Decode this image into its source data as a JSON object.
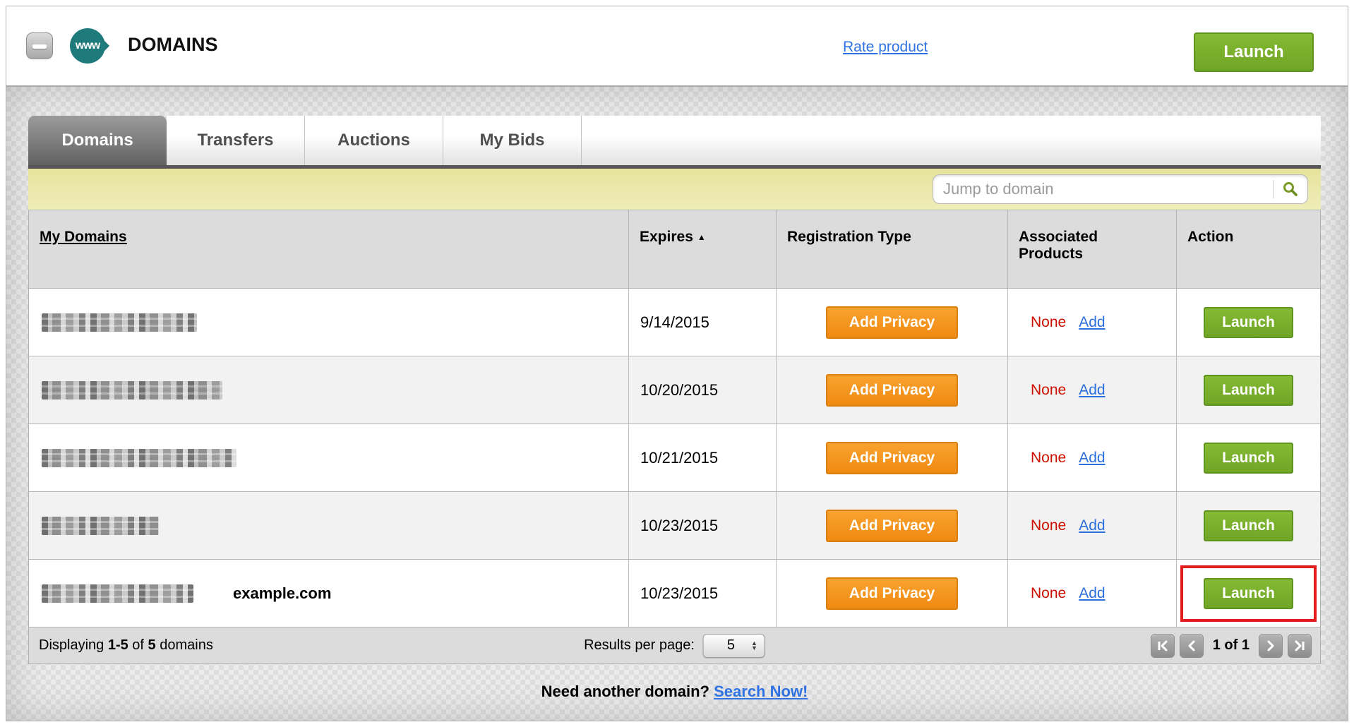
{
  "header": {
    "logo_text": "www",
    "title": "DOMAINS",
    "rate_product_label": "Rate product",
    "launch_label": "Launch"
  },
  "tabs": [
    {
      "label": "Domains",
      "active": true
    },
    {
      "label": "Transfers",
      "active": false
    },
    {
      "label": "Auctions",
      "active": false
    },
    {
      "label": "My Bids",
      "active": false
    }
  ],
  "search": {
    "placeholder": "Jump to domain"
  },
  "table": {
    "columns": {
      "domains": "My Domains",
      "expires": "Expires",
      "expires_sort": "▲",
      "registration": "Registration Type",
      "associated": "Associated Products",
      "action": "Action"
    },
    "rows": [
      {
        "redacted": true,
        "redact_width": 220,
        "expires": "9/14/2015",
        "privacy_label": "Add Privacy",
        "associated_value": "None",
        "add_label": "Add",
        "action_label": "Launch",
        "highlighted": false,
        "annotation": ""
      },
      {
        "redacted": true,
        "redact_width": 256,
        "expires": "10/20/2015",
        "privacy_label": "Add Privacy",
        "associated_value": "None",
        "add_label": "Add",
        "action_label": "Launch",
        "highlighted": false,
        "annotation": ""
      },
      {
        "redacted": true,
        "redact_width": 276,
        "expires": "10/21/2015",
        "privacy_label": "Add Privacy",
        "associated_value": "None",
        "add_label": "Add",
        "action_label": "Launch",
        "highlighted": false,
        "annotation": ""
      },
      {
        "redacted": true,
        "redact_width": 166,
        "expires": "10/23/2015",
        "privacy_label": "Add Privacy",
        "associated_value": "None",
        "add_label": "Add",
        "action_label": "Launch",
        "highlighted": false,
        "annotation": ""
      },
      {
        "redacted": true,
        "redact_width": 215,
        "expires": "10/23/2015",
        "privacy_label": "Add Privacy",
        "associated_value": "None",
        "add_label": "Add",
        "action_label": "Launch",
        "highlighted": true,
        "annotation": "example.com"
      }
    ]
  },
  "footer": {
    "displaying_prefix": "Displaying",
    "range": "1-5",
    "of_word": "of",
    "total": "5",
    "suffix": "domains",
    "results_per_page_label": "Results per page:",
    "results_per_page_value": "5",
    "page_status": "1 of 1"
  },
  "bottom": {
    "prompt": "Need another domain?",
    "link_label": "Search Now!"
  },
  "colors": {
    "accent_green": "#7ab32b",
    "accent_orange": "#f5941e",
    "link_blue": "#2f72e4",
    "status_red": "#cc1100",
    "bar_yellow": "#e9e6a3",
    "brand_teal": "#1e7a7b"
  }
}
